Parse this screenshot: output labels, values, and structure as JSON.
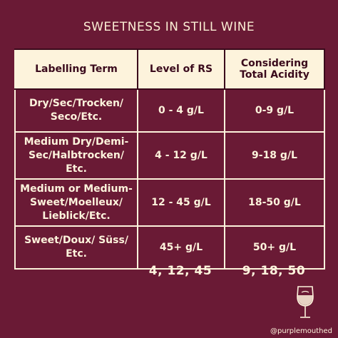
{
  "title": "SWEETNESS IN STILL WINE",
  "table": {
    "headers": [
      "Labelling Term",
      "Level of RS",
      "Considering Total Acidity"
    ],
    "rows": [
      {
        "term": "Dry/Sec/Trocken/ Seco/Etc.",
        "rs": "0 - 4 g/L",
        "ta": "0-9 g/L"
      },
      {
        "term": "Medium Dry/Demi-Sec/Halbtrocken/ Etc.",
        "rs": "4 - 12 g/L",
        "ta": "9-18 g/L"
      },
      {
        "term": "Medium or Medium-Sweet/Moelleux/ Lieblick/Etc.",
        "rs": "12 - 45 g/L",
        "ta": "18-50 g/L"
      },
      {
        "term": "Sweet/Doux/ Süss/ Etc.",
        "rs": "45+ g/L",
        "ta": "50+ g/L"
      }
    ]
  },
  "summary": {
    "rs": "4, 12, 45",
    "ta": "9, 18, 50"
  },
  "handle": "@purplemouthed",
  "colors": {
    "background": "#6a1a35",
    "cream": "#fdf3dc",
    "header_text": "#3a0a1c"
  },
  "icons": [
    "wine-glass-icon"
  ]
}
